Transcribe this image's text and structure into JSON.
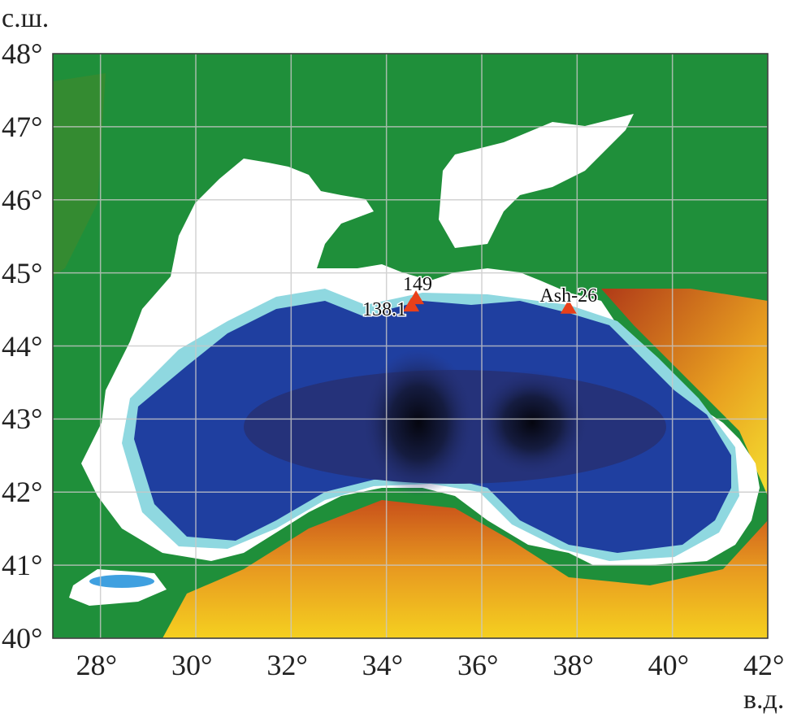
{
  "map": {
    "lon_range": [
      27,
      42
    ],
    "lat_range": [
      40,
      48
    ],
    "lat_axis_title": "с.ш.",
    "lon_axis_title": "в.д.",
    "lon_ticks": [
      "28°",
      "30°",
      "32°",
      "34°",
      "36°",
      "38°",
      "40°",
      "42°"
    ],
    "lon_tick_values": [
      28,
      30,
      32,
      34,
      36,
      38,
      40,
      42
    ],
    "lat_ticks": [
      "40°",
      "41°",
      "42°",
      "43°",
      "44°",
      "45°",
      "46°",
      "47°",
      "48°"
    ],
    "lat_tick_values": [
      40,
      41,
      42,
      43,
      44,
      45,
      46,
      47,
      48
    ],
    "grid": true,
    "colors": {
      "land": "#1f8f3a",
      "shelf": "#ffffff",
      "deep": "#1f3fa0",
      "deepest": "#0a0f2a",
      "highland": "#e8a020",
      "marker": "#e8401a"
    },
    "markers": [
      {
        "label": "149",
        "lon": 34.62,
        "lat": 44.65
      },
      {
        "label": "138.1",
        "lon": 34.52,
        "lat": 44.55
      },
      {
        "label": "Ash-26",
        "lon": 37.82,
        "lat": 44.52
      }
    ]
  }
}
